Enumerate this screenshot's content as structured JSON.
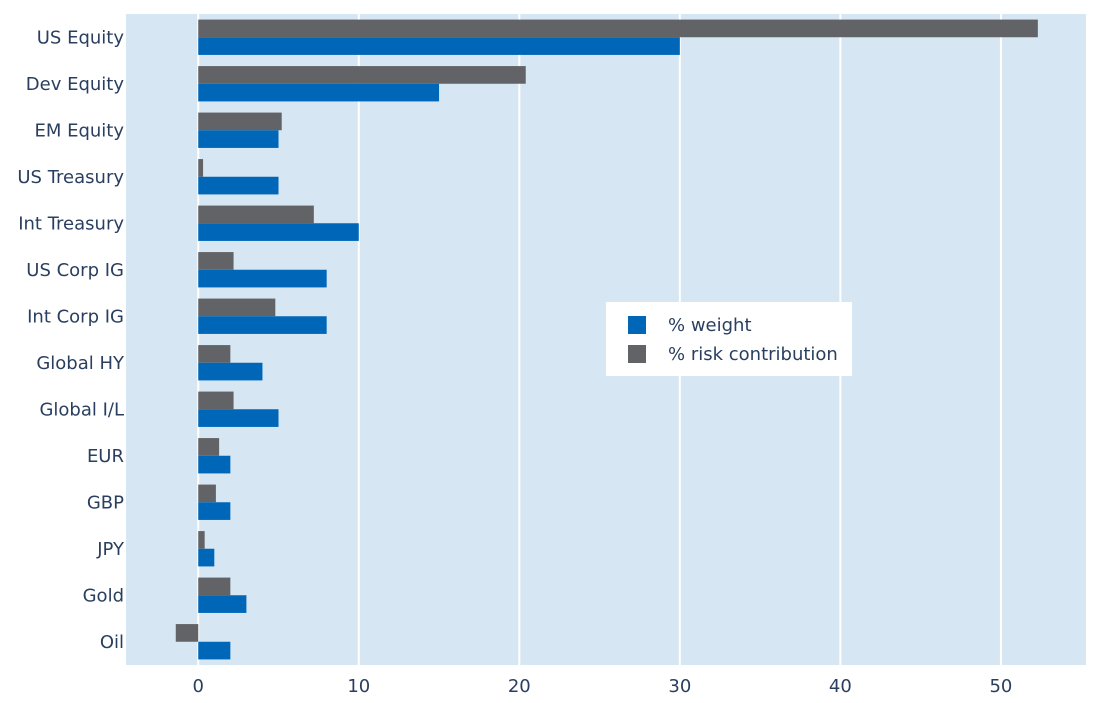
{
  "chart_data": {
    "type": "bar",
    "orientation": "horizontal",
    "categories": [
      "US Equity",
      "Dev Equity",
      "EM Equity",
      "US Treasury",
      "Int Treasury",
      "US Corp IG",
      "Int Corp IG",
      "Global HY",
      "Global I/L",
      "EUR",
      "GBP",
      "JPY",
      "Gold",
      "Oil"
    ],
    "series": [
      {
        "name": "% weight",
        "color": "#0066b8",
        "values": [
          30,
          15,
          5,
          5,
          10,
          8,
          8,
          4,
          5,
          2,
          2,
          1,
          3,
          2
        ]
      },
      {
        "name": "% risk contribution",
        "color": "#626366",
        "values": [
          52.3,
          20.4,
          5.2,
          0.3,
          7.2,
          2.2,
          4.8,
          2.0,
          2.2,
          1.3,
          1.1,
          0.4,
          2.0,
          -1.4
        ]
      }
    ],
    "xlim": [
      -4.5,
      55.3
    ],
    "xticks": [
      0,
      10,
      20,
      30,
      40,
      50
    ],
    "grid": true,
    "legend_position": "center-right",
    "plot_background": "#d6e6f2",
    "title": "",
    "xlabel": "",
    "ylabel": ""
  }
}
